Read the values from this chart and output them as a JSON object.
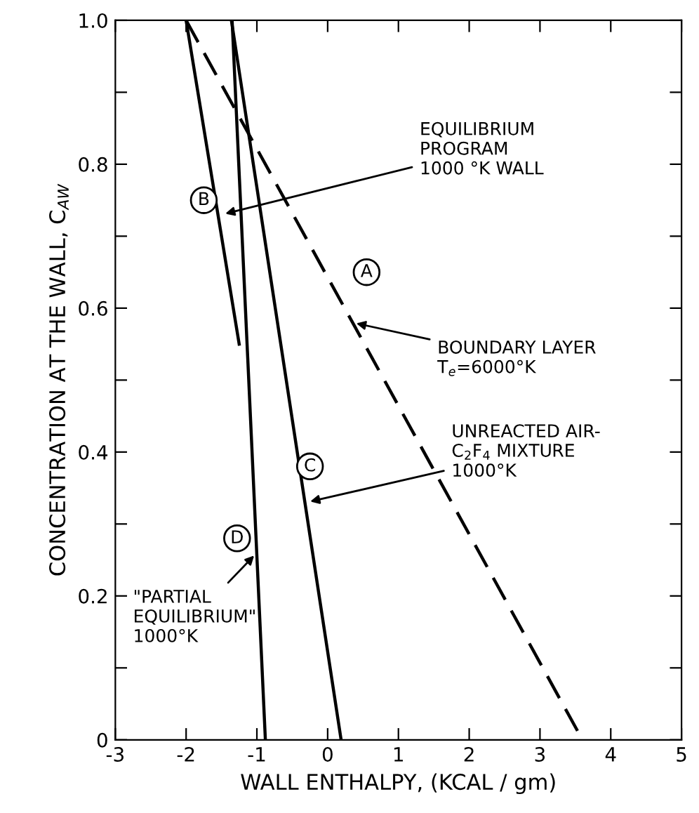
{
  "chart_data": {
    "type": "line",
    "xlabel": "WALL ENTHALPY, (KCAL / gm)",
    "ylabel": "CONCENTRATION AT THE WALL, C$_{AW}$",
    "xlim": [
      -3,
      5
    ],
    "ylim": [
      0,
      1.0
    ],
    "xticks": [
      -3,
      -2,
      -1,
      0,
      1,
      2,
      3,
      4,
      5
    ],
    "yticks": [
      0,
      {
        "value": 0.1,
        "label": null
      },
      0.2,
      {
        "value": 0.3,
        "label": null
      },
      0.4,
      {
        "value": 0.5,
        "label": null
      },
      0.6,
      {
        "value": 0.7,
        "label": null
      },
      0.8,
      {
        "value": 0.9,
        "label": null
      },
      {
        "value": 1,
        "label": "1.0"
      }
    ],
    "grid": false,
    "legend": false,
    "marker": "none",
    "series": [
      {
        "x": [
          -2.0,
          3.6
        ],
        "values": [
          1.0,
          0
        ],
        "color": "#000000",
        "line_style": "dashed"
      },
      {
        "x": [
          -2.0,
          -1.25
        ],
        "values": [
          1.0,
          0.55
        ],
        "color": "#000000",
        "line_style": "solid"
      },
      {
        "x": [
          -1.36,
          0.19
        ],
        "values": [
          1.0,
          0
        ],
        "color": "#000000",
        "line_style": "solid"
      },
      {
        "x": [
          -1.35,
          -0.88
        ],
        "values": [
          1.0,
          0
        ],
        "color": "#000000",
        "line_style": "solid"
      }
    ],
    "annotations": [
      {
        "text": "EQUILIBRIUM\nPROGRAM\n1000 °K WALL",
        "x": -1.5,
        "y": 0.73
      },
      {
        "text": "BOUNDARY LAYER\nT$_{e}$=6000°K",
        "x": 0.35,
        "y": 0.58
      },
      {
        "text": "UNREACTED AIR-\nC$_{2}$F$_{4}$ MIXTURE\n1000°K",
        "x": -0.3,
        "y": 0.33
      },
      {
        "text": "\"PARTIAL\nEQUILIBRIUM\"\n1000°K",
        "x": -1.0,
        "y": 0.26
      },
      {
        "text": "A",
        "x": 0.55,
        "y": 0.65
      },
      {
        "text": "B",
        "x": -1.75,
        "y": 0.75
      },
      {
        "text": "C",
        "x": -0.25,
        "y": 0.38
      },
      {
        "text": "D",
        "x": -1.28,
        "y": 0.28
      }
    ]
  }
}
